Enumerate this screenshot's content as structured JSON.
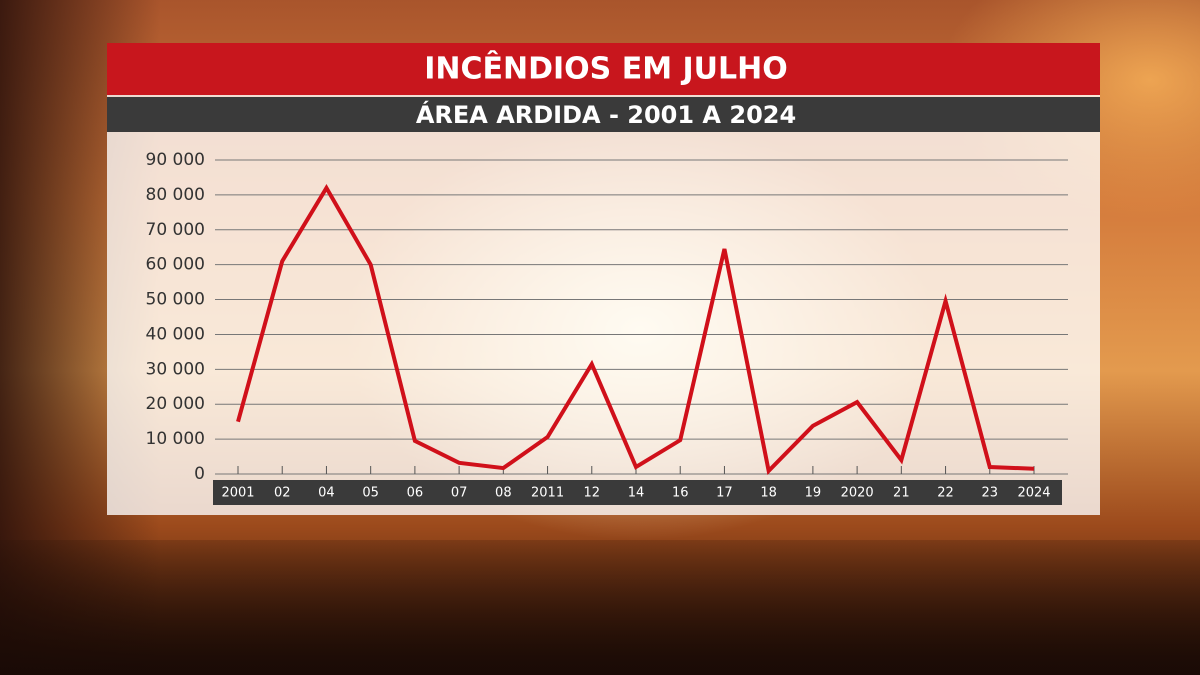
{
  "chart_data": {
    "type": "line",
    "title": "INCÊNDIOS EM JULHO",
    "subtitle": "ÁREA ARDIDA - 2001 A 2024",
    "categories": [
      "2001",
      "02",
      "04",
      "05",
      "06",
      "07",
      "08",
      "2011",
      "12",
      "14",
      "16",
      "17",
      "18",
      "19",
      "2020",
      "21",
      "22",
      "23",
      "2024"
    ],
    "series": [
      {
        "name": "Área ardida",
        "color": "#d0101a",
        "values": [
          15000,
          61000,
          82000,
          60000,
          9500,
          3200,
          1700,
          10600,
          31500,
          2000,
          9700,
          64500,
          900,
          13800,
          20600,
          4000,
          49600,
          2000,
          1500
        ]
      }
    ],
    "ylim": [
      0,
      90000
    ],
    "yticks": [
      0,
      {
        "value": 10000,
        "label": "10 000"
      },
      {
        "value": 20000,
        "label": "20 000"
      },
      {
        "value": 30000,
        "label": "30 000"
      },
      {
        "value": 40000,
        "label": "40 000"
      },
      {
        "value": 50000,
        "label": "50 000"
      },
      {
        "value": 60000,
        "label": "60 000"
      },
      {
        "value": 70000,
        "label": "70 000"
      },
      {
        "value": 80000,
        "label": "80 000"
      },
      {
        "value": 90000,
        "label": "90 000"
      }
    ],
    "grid": true
  }
}
